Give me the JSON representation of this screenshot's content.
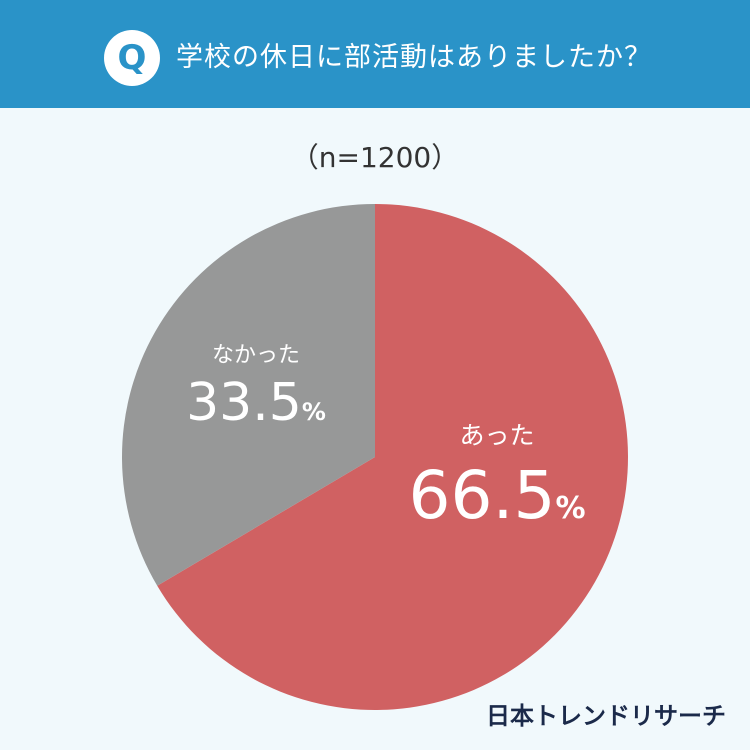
{
  "header": {
    "badge": "Q",
    "question": "学校の休日に部活動はありましたか？"
  },
  "sample_size": "（n=1200）",
  "brand": "日本トレンドリサーチ",
  "chart_data": {
    "type": "pie",
    "categories": [
      "あった",
      "なかった"
    ],
    "values": [
      66.5,
      33.5
    ],
    "value_labels": [
      "66.5",
      "33.5"
    ],
    "unit": "%",
    "colors": [
      "#d06162",
      "#979898"
    ],
    "start": "12 o'clock",
    "direction": "clockwise"
  }
}
